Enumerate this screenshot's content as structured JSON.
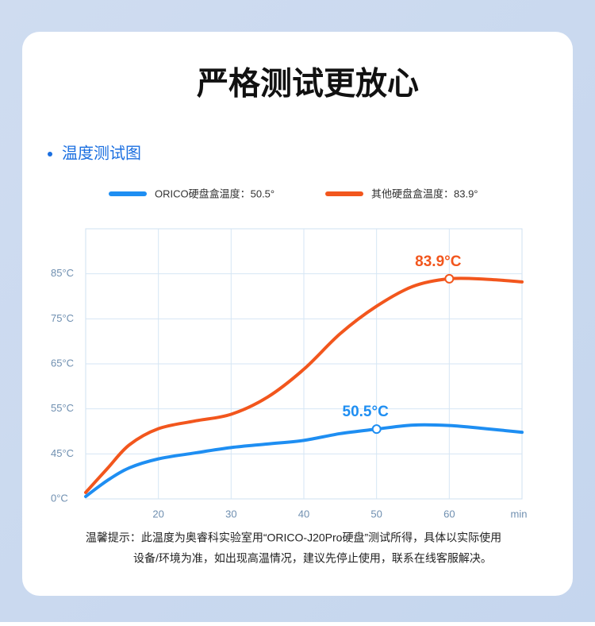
{
  "chart_data": {
    "type": "line",
    "title": "严格测试更放心",
    "subtitle": "温度测试图",
    "x_label": "min",
    "x": [
      10,
      13,
      16,
      20,
      25,
      30,
      35,
      40,
      45,
      50,
      55,
      60,
      65,
      70
    ],
    "series": [
      {
        "name": "ORICO硬盘盒温度：50.5°",
        "color": "#1e8ef2",
        "values": [
          2.4,
          18.5,
          31,
          40,
          45.2,
          46.4,
          47.2,
          48,
          49.5,
          50.5,
          51.4,
          51.3,
          50.6,
          49.8
        ]
      },
      {
        "name": "其他硬盘盒温度：83.9°",
        "color": "#f2561d",
        "values": [
          6.4,
          30.5,
          47,
          50.6,
          52.3,
          53.8,
          57.6,
          63.8,
          71.7,
          77.8,
          82.2,
          83.9,
          83.8,
          83.2
        ]
      }
    ],
    "annotations": [
      {
        "text": "50.5°C",
        "series": 0,
        "x": 50
      },
      {
        "text": "83.9°C",
        "series": 1,
        "x": 60
      }
    ],
    "xlim": [
      10,
      70
    ],
    "xticks": [
      20,
      30,
      40,
      50,
      60
    ],
    "ylim": [
      0,
      95
    ],
    "yticks": [
      {
        "value": 0,
        "label": "0°C"
      },
      {
        "value": 45,
        "label": "45°C"
      },
      {
        "value": 55,
        "label": "55°C"
      },
      {
        "value": 65,
        "label": "65°C"
      },
      {
        "value": 75,
        "label": "75°C"
      },
      {
        "value": 85,
        "label": "85°C"
      }
    ],
    "grid": true,
    "notes": [
      "温馨提示：此温度为奥睿科实验室用“ORICO-J20Pro硬盘”测试所得，具体以实际使用",
      "设备/环境为准，如出现高温情况，建议先停止使用，联系在线客服解决。"
    ]
  }
}
